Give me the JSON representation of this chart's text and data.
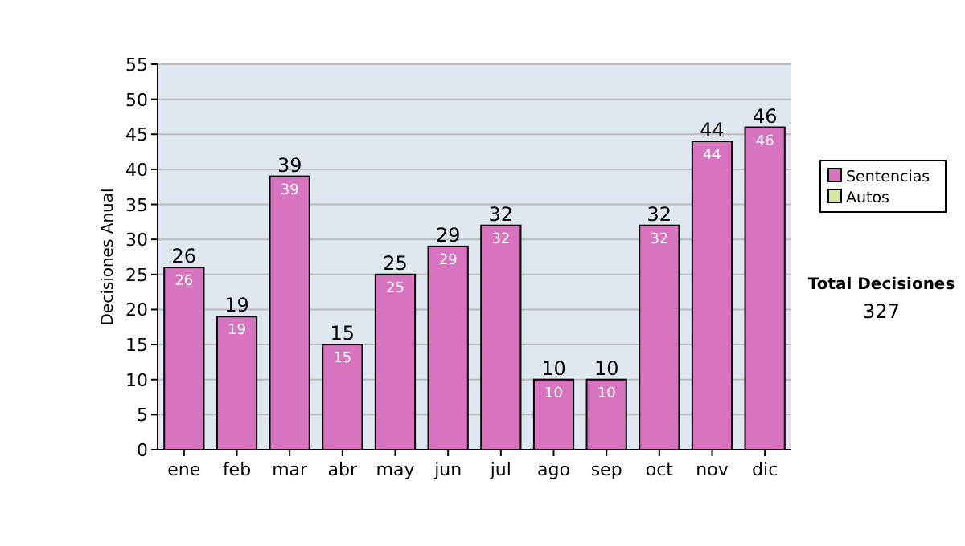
{
  "chart_data": {
    "type": "bar",
    "ylabel": "Decisiones Anual",
    "categories": [
      "ene",
      "feb",
      "mar",
      "abr",
      "may",
      "jun",
      "jul",
      "ago",
      "sep",
      "oct",
      "nov",
      "dic"
    ],
    "series": [
      {
        "name": "Sentencias",
        "color": "#d873c0",
        "values": [
          26,
          19,
          39,
          15,
          25,
          29,
          32,
          10,
          10,
          32,
          44,
          46
        ]
      },
      {
        "name": "Autos",
        "color": "#d4e6a0",
        "values": [
          null,
          null,
          null,
          null,
          null,
          null,
          null,
          null,
          null,
          null,
          null,
          null
        ]
      }
    ],
    "data_labels": true,
    "totals": [
      "26",
      "19",
      "39",
      "15",
      "25",
      "29",
      "32",
      "10",
      "10",
      "32",
      "44",
      "46"
    ],
    "ylim": [
      0,
      55
    ],
    "yticks": [
      0,
      5,
      10,
      15,
      20,
      25,
      30,
      35,
      40,
      45,
      50,
      55
    ],
    "grid": "y",
    "legend": "right",
    "annotations": [
      "Total Decisiones",
      "327"
    ]
  }
}
